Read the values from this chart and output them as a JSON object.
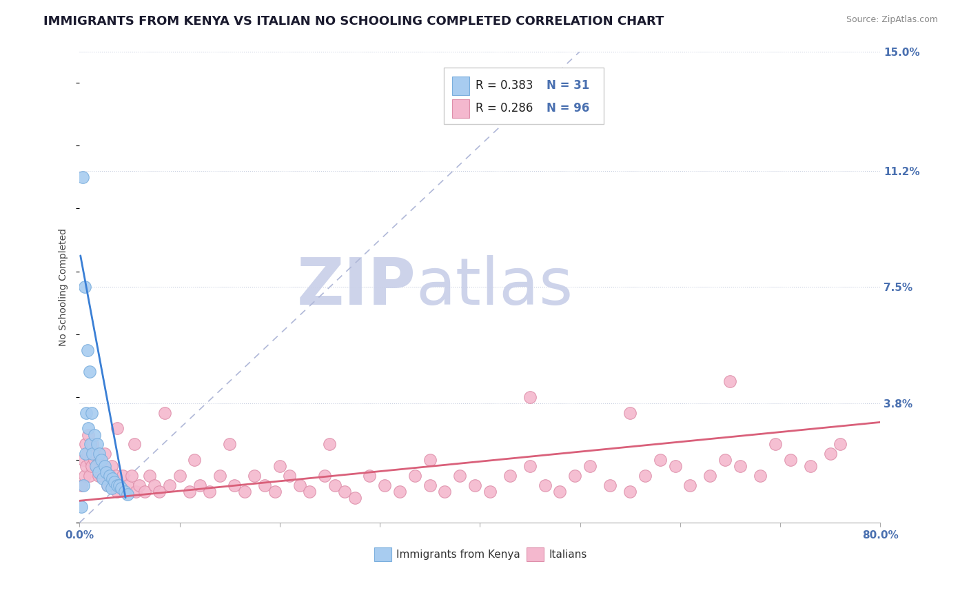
{
  "title": "IMMIGRANTS FROM KENYA VS ITALIAN NO SCHOOLING COMPLETED CORRELATION CHART",
  "source": "Source: ZipAtlas.com",
  "ylabel": "No Schooling Completed",
  "xlim": [
    0.0,
    0.8
  ],
  "ylim": [
    0.0,
    0.15
  ],
  "ytick_positions": [
    0.038,
    0.075,
    0.112,
    0.15
  ],
  "ytick_labels": [
    "3.8%",
    "7.5%",
    "11.2%",
    "15.0%"
  ],
  "legend_r1": "R = 0.383",
  "legend_n1": "N = 31",
  "legend_r2": "R = 0.286",
  "legend_n2": "N = 96",
  "kenya_color": "#a8ccf0",
  "kenya_edge_color": "#7aaedd",
  "italian_color": "#f4b8ce",
  "italian_edge_color": "#de8faa",
  "trend_kenya_color": "#3a7fd5",
  "trend_italian_color": "#d9607a",
  "diagonal_color": "#b0b8d8",
  "background_color": "#ffffff",
  "watermark_zip_color": "#c8cfe8",
  "watermark_atlas_color": "#c8cfe8",
  "title_fontsize": 13,
  "axis_label_fontsize": 10,
  "tick_fontsize": 11,
  "kenya_scatter_x": [
    0.002,
    0.003,
    0.004,
    0.005,
    0.006,
    0.007,
    0.008,
    0.009,
    0.01,
    0.011,
    0.012,
    0.013,
    0.015,
    0.016,
    0.018,
    0.019,
    0.02,
    0.022,
    0.023,
    0.025,
    0.027,
    0.028,
    0.03,
    0.032,
    0.033,
    0.035,
    0.038,
    0.04,
    0.042,
    0.045,
    0.048
  ],
  "kenya_scatter_y": [
    0.005,
    0.11,
    0.012,
    0.075,
    0.022,
    0.035,
    0.055,
    0.03,
    0.048,
    0.025,
    0.035,
    0.022,
    0.028,
    0.018,
    0.025,
    0.016,
    0.022,
    0.02,
    0.014,
    0.018,
    0.016,
    0.012,
    0.015,
    0.011,
    0.014,
    0.013,
    0.012,
    0.012,
    0.011,
    0.01,
    0.009
  ],
  "italian_scatter_x": [
    0.002,
    0.004,
    0.005,
    0.006,
    0.007,
    0.008,
    0.009,
    0.01,
    0.011,
    0.012,
    0.013,
    0.015,
    0.016,
    0.018,
    0.019,
    0.02,
    0.022,
    0.024,
    0.025,
    0.027,
    0.028,
    0.03,
    0.032,
    0.034,
    0.036,
    0.038,
    0.04,
    0.043,
    0.045,
    0.048,
    0.052,
    0.056,
    0.06,
    0.065,
    0.07,
    0.075,
    0.08,
    0.09,
    0.1,
    0.11,
    0.12,
    0.13,
    0.14,
    0.155,
    0.165,
    0.175,
    0.185,
    0.195,
    0.21,
    0.22,
    0.23,
    0.245,
    0.255,
    0.265,
    0.275,
    0.29,
    0.305,
    0.32,
    0.335,
    0.35,
    0.365,
    0.38,
    0.395,
    0.41,
    0.43,
    0.45,
    0.465,
    0.48,
    0.495,
    0.51,
    0.53,
    0.55,
    0.565,
    0.58,
    0.595,
    0.61,
    0.63,
    0.645,
    0.66,
    0.68,
    0.695,
    0.71,
    0.73,
    0.75,
    0.76,
    0.038,
    0.055,
    0.085,
    0.115,
    0.15,
    0.2,
    0.25,
    0.35,
    0.45,
    0.55,
    0.65
  ],
  "italian_scatter_y": [
    0.012,
    0.02,
    0.015,
    0.025,
    0.018,
    0.022,
    0.028,
    0.015,
    0.02,
    0.018,
    0.025,
    0.02,
    0.022,
    0.018,
    0.015,
    0.02,
    0.015,
    0.018,
    0.022,
    0.016,
    0.012,
    0.015,
    0.018,
    0.012,
    0.015,
    0.01,
    0.012,
    0.015,
    0.01,
    0.012,
    0.015,
    0.01,
    0.012,
    0.01,
    0.015,
    0.012,
    0.01,
    0.012,
    0.015,
    0.01,
    0.012,
    0.01,
    0.015,
    0.012,
    0.01,
    0.015,
    0.012,
    0.01,
    0.015,
    0.012,
    0.01,
    0.015,
    0.012,
    0.01,
    0.008,
    0.015,
    0.012,
    0.01,
    0.015,
    0.012,
    0.01,
    0.015,
    0.012,
    0.01,
    0.015,
    0.018,
    0.012,
    0.01,
    0.015,
    0.018,
    0.012,
    0.01,
    0.015,
    0.02,
    0.018,
    0.012,
    0.015,
    0.02,
    0.018,
    0.015,
    0.025,
    0.02,
    0.018,
    0.022,
    0.025,
    0.03,
    0.025,
    0.035,
    0.02,
    0.025,
    0.018,
    0.025,
    0.02,
    0.04,
    0.035,
    0.045
  ]
}
